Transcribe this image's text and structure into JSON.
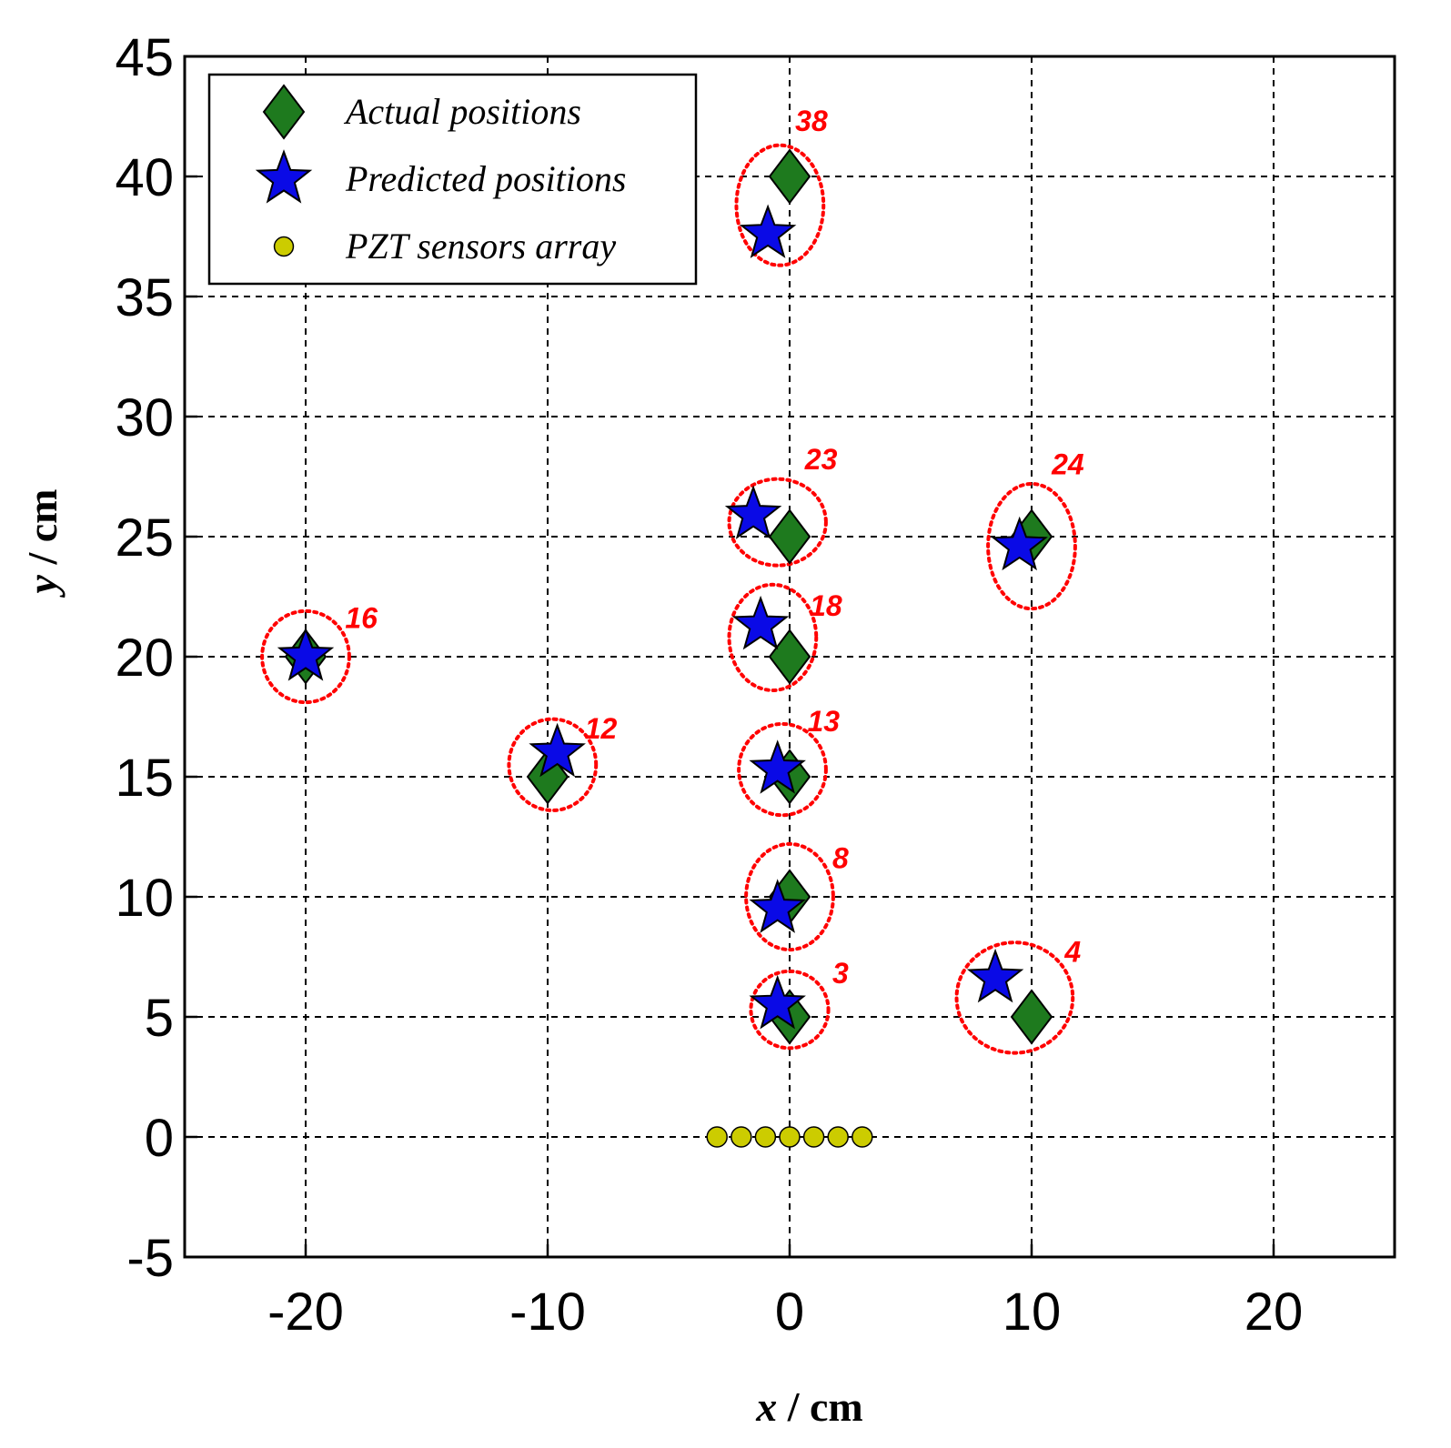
{
  "chart_data": {
    "type": "scatter",
    "xlabel_var": "x",
    "xlabel_unit": " / cm",
    "ylabel_var": "y",
    "ylabel_unit": " / cm",
    "xlim": [
      -25,
      25
    ],
    "ylim": [
      -5,
      45
    ],
    "xticks": [
      -20,
      -10,
      0,
      10,
      20
    ],
    "yticks": [
      -5,
      0,
      5,
      10,
      15,
      20,
      25,
      30,
      35,
      40,
      45
    ],
    "grid": true,
    "grid_style": "dashed",
    "legend_position": "top-left",
    "colors": {
      "actual": "#1e7a1e",
      "predicted": "#0a0ae6",
      "sensor": "#cccc00",
      "annotation": "#ff0000"
    },
    "series": [
      {
        "name": "Actual positions",
        "marker": "diamond",
        "points": [
          {
            "x": 0,
            "y": 40
          },
          {
            "x": 0,
            "y": 25
          },
          {
            "x": 10,
            "y": 25
          },
          {
            "x": 0,
            "y": 20
          },
          {
            "x": -20,
            "y": 20
          },
          {
            "x": -10,
            "y": 15
          },
          {
            "x": 0,
            "y": 15
          },
          {
            "x": 0,
            "y": 10
          },
          {
            "x": 0,
            "y": 5
          },
          {
            "x": 10,
            "y": 5
          }
        ]
      },
      {
        "name": "Predicted positions",
        "marker": "star",
        "points": [
          {
            "x": -0.9,
            "y": 37.6
          },
          {
            "x": -1.5,
            "y": 25.9
          },
          {
            "x": 9.5,
            "y": 24.6
          },
          {
            "x": -1.2,
            "y": 21.3
          },
          {
            "x": -20,
            "y": 20
          },
          {
            "x": -9.6,
            "y": 16
          },
          {
            "x": -0.5,
            "y": 15.3
          },
          {
            "x": -0.5,
            "y": 9.5
          },
          {
            "x": -0.5,
            "y": 5.5
          },
          {
            "x": 8.5,
            "y": 6.6
          }
        ]
      },
      {
        "name": "PZT sensors array",
        "marker": "circle",
        "points": [
          {
            "x": -3,
            "y": 0
          },
          {
            "x": -2,
            "y": 0
          },
          {
            "x": -1,
            "y": 0
          },
          {
            "x": 0,
            "y": 0
          },
          {
            "x": 1,
            "y": 0
          },
          {
            "x": 2,
            "y": 0
          },
          {
            "x": 3,
            "y": 0
          }
        ]
      }
    ],
    "annotations": [
      {
        "id": "38",
        "cx": -0.4,
        "cy": 38.8,
        "rx": 1.8,
        "ry": 2.5,
        "label_x": 0.9,
        "label_y": 41.9
      },
      {
        "id": "23",
        "cx": -0.5,
        "cy": 25.6,
        "rx": 2.0,
        "ry": 1.8,
        "label_x": 1.3,
        "label_y": 27.8
      },
      {
        "id": "24",
        "cx": 10.0,
        "cy": 24.6,
        "rx": 1.8,
        "ry": 2.6,
        "label_x": 11.5,
        "label_y": 27.6
      },
      {
        "id": "18",
        "cx": -0.7,
        "cy": 20.8,
        "rx": 1.8,
        "ry": 2.2,
        "label_x": 1.5,
        "label_y": 21.7
      },
      {
        "id": "16",
        "cx": -20.0,
        "cy": 20.0,
        "rx": 1.8,
        "ry": 1.9,
        "label_x": -17.7,
        "label_y": 21.2
      },
      {
        "id": "12",
        "cx": -9.8,
        "cy": 15.5,
        "rx": 1.8,
        "ry": 1.9,
        "label_x": -7.8,
        "label_y": 16.6
      },
      {
        "id": "13",
        "cx": -0.3,
        "cy": 15.3,
        "rx": 1.8,
        "ry": 1.9,
        "label_x": 1.4,
        "label_y": 16.9
      },
      {
        "id": "8",
        "cx": 0.0,
        "cy": 10.0,
        "rx": 1.8,
        "ry": 2.2,
        "label_x": 2.1,
        "label_y": 11.2
      },
      {
        "id": "3",
        "cx": 0.0,
        "cy": 5.3,
        "rx": 1.6,
        "ry": 1.6,
        "label_x": 2.1,
        "label_y": 6.4
      },
      {
        "id": "4",
        "cx": 9.3,
        "cy": 5.8,
        "rx": 2.4,
        "ry": 2.3,
        "label_x": 11.7,
        "label_y": 7.3
      }
    ]
  }
}
